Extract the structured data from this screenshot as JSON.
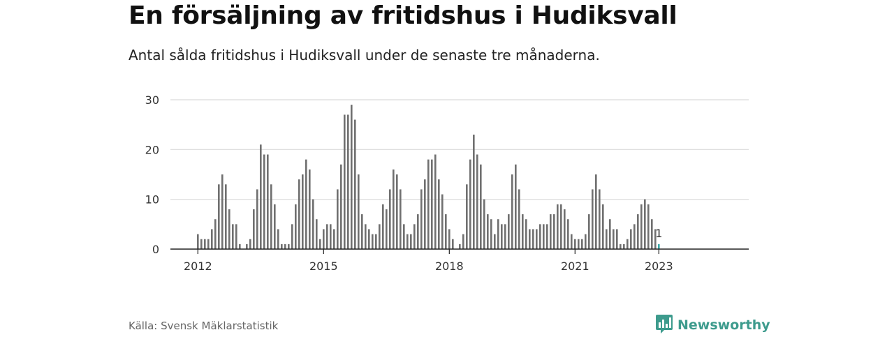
{
  "header": {
    "title": "En försäljning av fritidshus i Hudiksvall",
    "subtitle": "Antal sålda fritidshus i Hudiksvall under de senaste tre månaderna."
  },
  "footer": {
    "source": "Källa: Svensk Mäklarstatistik",
    "brand": "Newsworthy",
    "brand_color": "#3d9b8d"
  },
  "chart_data": {
    "type": "bar",
    "title": "En försäljning av fritidshus i Hudiksvall",
    "subtitle": "Antal sålda fritidshus i Hudiksvall under de senaste tre månaderna.",
    "start": "2012-01",
    "x_ticks": [
      "2012",
      "2015",
      "2018",
      "2021",
      "2023"
    ],
    "y_ticks": [
      0,
      10,
      20,
      30
    ],
    "ylim": [
      0,
      30
    ],
    "grid": true,
    "bar_color": "#707070",
    "highlight_color": "#3aa8a8",
    "highlight_label": "1",
    "values": [
      3,
      2,
      2,
      2,
      4,
      6,
      13,
      15,
      13,
      8,
      5,
      5,
      1,
      0,
      1,
      2,
      8,
      12,
      21,
      19,
      19,
      13,
      9,
      4,
      1,
      1,
      1,
      5,
      9,
      14,
      15,
      18,
      16,
      10,
      6,
      2,
      4,
      5,
      5,
      4,
      12,
      17,
      27,
      27,
      29,
      26,
      15,
      7,
      5,
      4,
      3,
      3,
      5,
      9,
      8,
      12,
      16,
      15,
      12,
      5,
      3,
      3,
      5,
      7,
      12,
      14,
      18,
      18,
      19,
      14,
      11,
      7,
      4,
      2,
      0,
      1,
      3,
      13,
      18,
      23,
      19,
      17,
      10,
      7,
      6,
      3,
      6,
      5,
      5,
      7,
      15,
      17,
      12,
      7,
      6,
      4,
      4,
      4,
      5,
      5,
      5,
      7,
      7,
      9,
      9,
      8,
      6,
      3,
      2,
      2,
      2,
      3,
      7,
      12,
      15,
      12,
      9,
      4,
      6,
      4,
      4,
      1,
      1,
      2,
      4,
      5,
      7,
      9,
      10,
      9,
      6,
      4,
      1
    ]
  }
}
